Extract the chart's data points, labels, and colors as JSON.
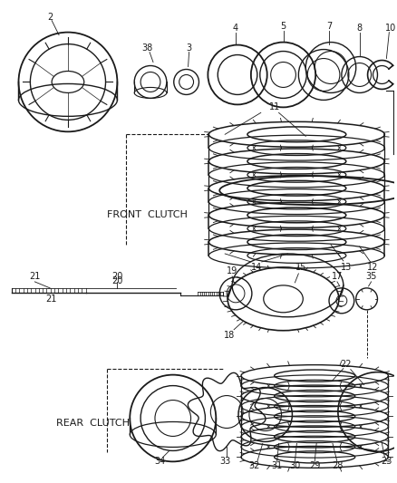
{
  "background_color": "#ffffff",
  "line_color": "#1a1a1a",
  "text_color": "#1a1a1a",
  "label_fontsize": 7.0,
  "section_label_fontsize": 8.0,
  "front_clutch_label": "FRONT  CLUTCH",
  "rear_clutch_label": "REAR  CLUTCH"
}
